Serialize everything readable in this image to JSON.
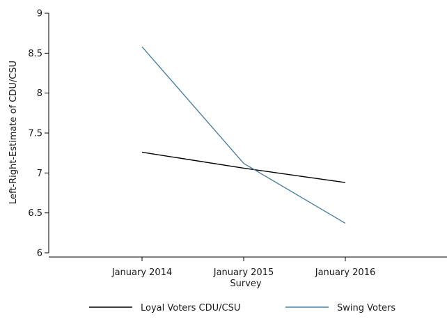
{
  "chart_data": {
    "type": "line",
    "title": "",
    "xlabel": "Survey",
    "ylabel": "Left-Right-Estimate of CDU/CSU",
    "categories": [
      "January 2014",
      "January 2015",
      "January 2016"
    ],
    "ylim": [
      6,
      9
    ],
    "yticks": [
      6,
      6.5,
      7,
      7.5,
      8,
      8.5,
      9
    ],
    "ytick_labels": [
      "6",
      "6.5",
      "7",
      "7.5",
      "8",
      "8.5",
      "9"
    ],
    "grid": false,
    "legend_position": "bottom",
    "series": [
      {
        "name": "Loyal Voters CDU/CSU",
        "values": [
          7.26,
          7.06,
          6.88
        ],
        "color": "#000000"
      },
      {
        "name": "Swing Voters",
        "values": [
          8.58,
          7.12,
          6.37
        ],
        "color": "#4d7fa3"
      }
    ]
  }
}
